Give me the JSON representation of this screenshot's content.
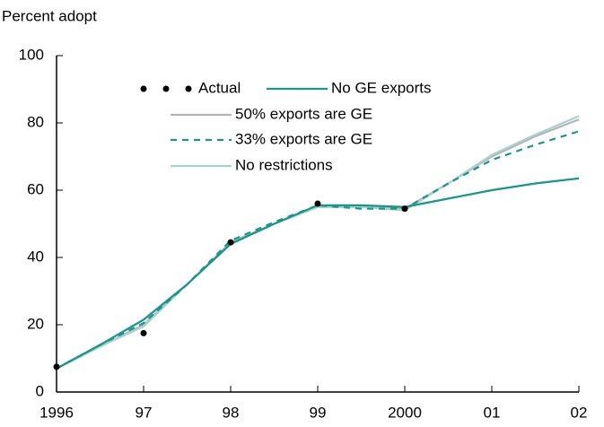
{
  "chart_data": {
    "type": "line",
    "y_label": "Percent adopt",
    "x": [
      1996,
      1996.5,
      1997,
      1997.5,
      1998,
      1998.5,
      1999,
      1999.5,
      2000,
      2000.5,
      2001,
      2001.5,
      2002
    ],
    "xlim": [
      1996,
      2002
    ],
    "xticks": [
      1996,
      {
        "value": 1997,
        "label": "97"
      },
      {
        "value": 1998,
        "label": "98"
      },
      {
        "value": 1999,
        "label": "99"
      },
      2000,
      {
        "value": 2001,
        "label": "01"
      },
      {
        "value": 2002,
        "label": "02"
      }
    ],
    "ylim": [
      0,
      100
    ],
    "yticks": [
      0,
      20,
      40,
      60,
      80,
      100
    ],
    "series": [
      {
        "name": "Actual",
        "color": "#000000",
        "style": "dots",
        "values": [
          7.5,
          null,
          17.5,
          null,
          44.5,
          null,
          56,
          null,
          54.5,
          null,
          null,
          null,
          null
        ]
      },
      {
        "name": "No GE exports",
        "color": "#17968a",
        "style": "solid",
        "values": [
          7,
          14,
          21.5,
          32,
          44,
          50,
          55.5,
          55.5,
          55,
          57.5,
          60,
          62,
          63.5
        ]
      },
      {
        "name": "50% exports are GE",
        "color": "#b4b4b4",
        "style": "solid",
        "values": [
          7,
          13.5,
          20,
          32,
          44.5,
          50,
          55,
          55,
          54.5,
          62,
          70,
          76,
          81
        ]
      },
      {
        "name": "33% exports are GE",
        "color": "#17968a",
        "style": "dashed",
        "values": [
          7,
          14,
          20.5,
          32,
          45,
          50.5,
          55.5,
          54.5,
          54.5,
          62,
          69,
          73.5,
          77.5
        ]
      },
      {
        "name": "No restrictions",
        "color": "#a9d2ce",
        "style": "solid",
        "values": [
          7,
          13.5,
          19.5,
          32,
          44,
          50,
          55,
          55,
          54,
          62,
          70.5,
          76.5,
          82
        ]
      }
    ]
  }
}
